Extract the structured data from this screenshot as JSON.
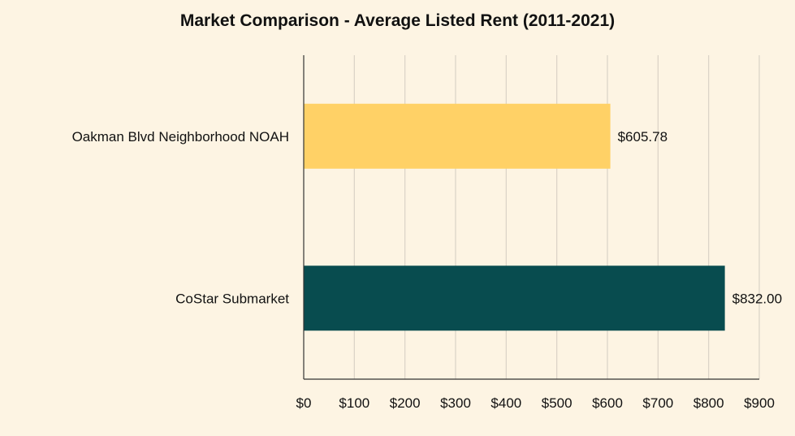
{
  "chart_data": {
    "type": "bar",
    "orientation": "horizontal",
    "title": "Market Comparison - Average Listed Rent (2011-2021)",
    "xlabel": "",
    "ylabel": "",
    "categories": [
      "Oakman Blvd Neighborhood NOAH",
      "CoStar Submarket"
    ],
    "values": [
      605.78,
      832.0
    ],
    "data_labels": [
      "$605.78",
      "$832.00"
    ],
    "bar_colors": [
      "#ffd166",
      "#084c4f"
    ],
    "xlim": [
      0,
      900
    ],
    "x_ticks": [
      0,
      100,
      200,
      300,
      400,
      500,
      600,
      700,
      800,
      900
    ],
    "x_tick_labels": [
      "$0",
      "$100",
      "$200",
      "$300",
      "$400",
      "$500",
      "$600",
      "$700",
      "$800",
      "$900"
    ],
    "grid": "vertical",
    "legend": "none"
  },
  "colors": {
    "background": "#fdf4e3",
    "gridline": "#d9d2c6",
    "axis": "#333333",
    "text": "#111111"
  }
}
